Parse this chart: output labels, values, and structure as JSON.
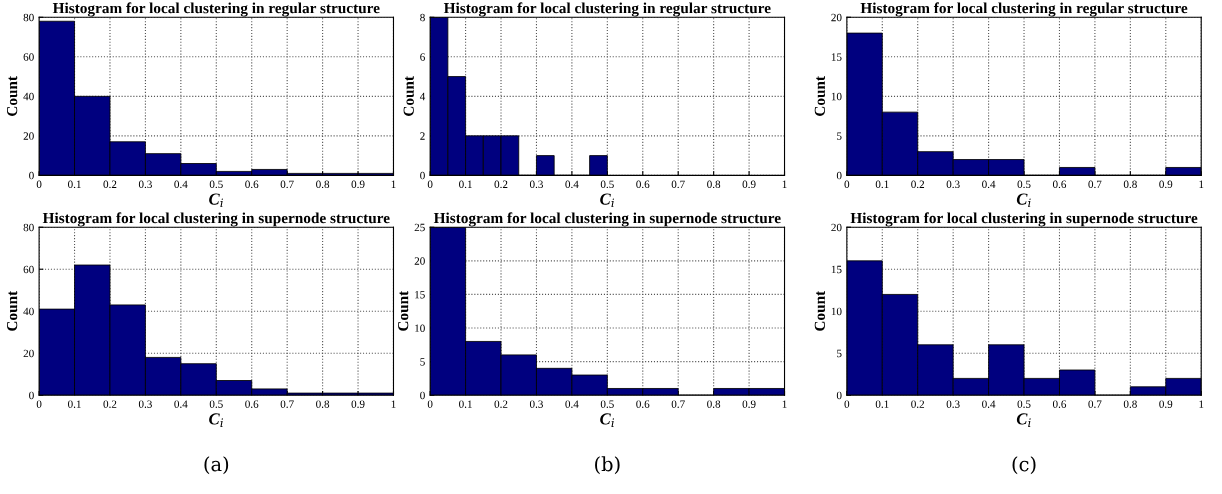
{
  "chart_data": [
    {
      "type": "histogram",
      "title": "Histogram for local clustering in regular structure",
      "xlabel": "C$_{i}$",
      "ylabel": "Count",
      "color": "#00007f",
      "bins": [
        0,
        0.1,
        0.2,
        0.3,
        0.4,
        0.5,
        0.6,
        0.7,
        0.8,
        0.9,
        1
      ],
      "values": [
        78,
        40,
        17,
        11,
        6,
        2,
        3,
        1,
        1,
        1
      ],
      "xlim": [
        0,
        1
      ],
      "xticks": [
        0,
        0.1,
        0.2,
        0.3,
        0.4,
        0.5,
        0.6,
        0.7,
        0.8,
        0.9,
        1
      ],
      "ylim": [
        0,
        80
      ],
      "yticks": [
        0,
        20,
        40,
        60,
        80
      ],
      "grid": true
    },
    {
      "type": "histogram",
      "title": "Histogram for local clustering in regular structure",
      "xlabel": "C$_{i}$",
      "ylabel": "Count",
      "color": "#00007f",
      "bins": [
        0,
        0.05,
        0.1,
        0.15,
        0.2,
        0.25,
        0.3,
        0.35,
        0.4,
        0.45,
        0.5
      ],
      "values": [
        8,
        5,
        2,
        2,
        2,
        0,
        1,
        0,
        0,
        1
      ],
      "xlim": [
        0,
        1
      ],
      "xticks": [
        0,
        0.1,
        0.2,
        0.3,
        0.4,
        0.5,
        0.6,
        0.7,
        0.8,
        0.9,
        1
      ],
      "ylim": [
        0,
        8
      ],
      "yticks": [
        0,
        2,
        4,
        6,
        8
      ],
      "grid": true
    },
    {
      "type": "histogram",
      "title": "Histogram for local clustering in regular structure",
      "xlabel": "C$_{i}$",
      "ylabel": "Count",
      "color": "#00007f",
      "bins": [
        0,
        0.1,
        0.2,
        0.3,
        0.4,
        0.5,
        0.6,
        0.7,
        0.8,
        0.9,
        1
      ],
      "values": [
        18,
        8,
        3,
        2,
        2,
        0,
        1,
        0,
        0,
        1
      ],
      "xlim": [
        0,
        1
      ],
      "xticks": [
        0,
        0.1,
        0.2,
        0.3,
        0.4,
        0.5,
        0.6,
        0.7,
        0.8,
        0.9,
        1
      ],
      "ylim": [
        0,
        20
      ],
      "yticks": [
        0,
        5,
        10,
        15,
        20
      ],
      "grid": true
    },
    {
      "type": "histogram",
      "title": "Histogram for local clustering in supernode structure",
      "xlabel": "C$_{i}$",
      "ylabel": "Count",
      "color": "#00007f",
      "bins": [
        0,
        0.1,
        0.2,
        0.3,
        0.4,
        0.5,
        0.6,
        0.7,
        0.8,
        0.9,
        1
      ],
      "values": [
        41,
        62,
        43,
        18,
        15,
        7,
        3,
        1,
        1,
        1
      ],
      "xlim": [
        0,
        1
      ],
      "xticks": [
        0,
        0.1,
        0.2,
        0.3,
        0.4,
        0.5,
        0.6,
        0.7,
        0.8,
        0.9,
        1
      ],
      "ylim": [
        0,
        80
      ],
      "yticks": [
        0,
        20,
        40,
        60,
        80
      ],
      "grid": true,
      "annotations": [
        "(a)"
      ]
    },
    {
      "type": "histogram",
      "title": "Histogram for local clustering in supernode structure",
      "xlabel": "C$_{i}$",
      "ylabel": "Count",
      "color": "#00007f",
      "bins": [
        0,
        0.1,
        0.2,
        0.3,
        0.4,
        0.5,
        0.6,
        0.7,
        0.8,
        0.9,
        1
      ],
      "values": [
        25,
        8,
        6,
        4,
        3,
        1,
        1,
        0,
        1,
        1
      ],
      "xlim": [
        0,
        1
      ],
      "xticks": [
        0,
        0.1,
        0.2,
        0.3,
        0.4,
        0.5,
        0.6,
        0.7,
        0.8,
        0.9,
        1
      ],
      "ylim": [
        0,
        25
      ],
      "yticks": [
        0,
        5,
        10,
        15,
        20,
        25
      ],
      "grid": true,
      "annotations": [
        "(b)"
      ]
    },
    {
      "type": "histogram",
      "title": "Histogram for local clustering in supernode structure",
      "xlabel": "C$_{i}$",
      "ylabel": "Count",
      "color": "#00007f",
      "bins": [
        0,
        0.1,
        0.2,
        0.3,
        0.4,
        0.5,
        0.6,
        0.7,
        0.8,
        0.9,
        1
      ],
      "values": [
        16,
        12,
        6,
        2,
        6,
        2,
        3,
        0,
        1,
        2
      ],
      "xlim": [
        0,
        1
      ],
      "xticks": [
        0,
        0.1,
        0.2,
        0.3,
        0.4,
        0.5,
        0.6,
        0.7,
        0.8,
        0.9,
        1
      ],
      "ylim": [
        0,
        20
      ],
      "yticks": [
        0,
        5,
        10,
        15,
        20
      ],
      "grid": true,
      "annotations": [
        "(c)"
      ]
    }
  ]
}
